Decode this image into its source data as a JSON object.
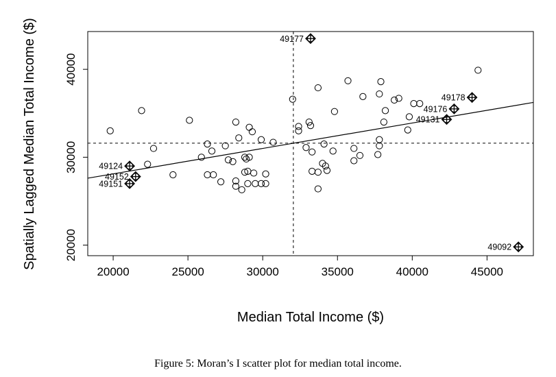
{
  "caption": "Figure 5: Moran’s I scatter plot for median total income.",
  "chart_data": {
    "type": "scatter",
    "xlabel": "Median Total Income ($)",
    "ylabel": "Spatially Lagged Median Total Income ($)",
    "xlim": [
      18300,
      48100
    ],
    "ylim": [
      18800,
      44300
    ],
    "xticks": [
      20000,
      25000,
      30000,
      35000,
      40000,
      45000
    ],
    "yticks": [
      20000,
      30000,
      40000
    ],
    "mean_x": 32050,
    "mean_y": 31600,
    "regression_line": {
      "intercept": 22320,
      "slope": 0.2893
    },
    "grid": false,
    "points": [
      [
        19800,
        33000
      ],
      [
        21900,
        35300
      ],
      [
        22300,
        29200
      ],
      [
        22700,
        31000
      ],
      [
        24000,
        28000
      ],
      [
        25100,
        34200
      ],
      [
        25900,
        30000
      ],
      [
        26300,
        31500
      ],
      [
        26600,
        30700
      ],
      [
        26300,
        28000
      ],
      [
        26700,
        28000
      ],
      [
        27200,
        27200
      ],
      [
        27500,
        31300
      ],
      [
        27700,
        29700
      ],
      [
        28000,
        29500
      ],
      [
        28200,
        34000
      ],
      [
        28200,
        27300
      ],
      [
        28200,
        26700
      ],
      [
        28400,
        32200
      ],
      [
        28600,
        26300
      ],
      [
        28800,
        30000
      ],
      [
        28800,
        28300
      ],
      [
        28900,
        29800
      ],
      [
        29000,
        28400
      ],
      [
        29000,
        27000
      ],
      [
        29100,
        30000
      ],
      [
        29100,
        33400
      ],
      [
        29300,
        32900
      ],
      [
        29400,
        28200
      ],
      [
        29500,
        27000
      ],
      [
        29900,
        32000
      ],
      [
        29900,
        27000
      ],
      [
        30200,
        28100
      ],
      [
        30200,
        27000
      ],
      [
        30700,
        31700
      ],
      [
        32000,
        36600
      ],
      [
        32400,
        33500
      ],
      [
        32400,
        33000
      ],
      [
        32900,
        31100
      ],
      [
        33100,
        34000
      ],
      [
        33200,
        33600
      ],
      [
        33300,
        30600
      ],
      [
        33300,
        28400
      ],
      [
        33700,
        37900
      ],
      [
        33700,
        28300
      ],
      [
        33700,
        26400
      ],
      [
        34000,
        29300
      ],
      [
        34100,
        31500
      ],
      [
        34200,
        29000
      ],
      [
        34300,
        28500
      ],
      [
        34700,
        30700
      ],
      [
        34800,
        35200
      ],
      [
        35700,
        38700
      ],
      [
        36100,
        31000
      ],
      [
        36100,
        29600
      ],
      [
        36500,
        30200
      ],
      [
        36700,
        36900
      ],
      [
        37700,
        30300
      ],
      [
        37800,
        32000
      ],
      [
        37800,
        31300
      ],
      [
        37800,
        37200
      ],
      [
        37900,
        38600
      ],
      [
        38100,
        34000
      ],
      [
        38200,
        35300
      ],
      [
        38800,
        36500
      ],
      [
        39100,
        36700
      ],
      [
        39800,
        34600
      ],
      [
        39700,
        33100
      ],
      [
        40100,
        36100
      ],
      [
        40500,
        36100
      ],
      [
        44400,
        39900
      ]
    ],
    "influential_points": [
      {
        "label": "49177",
        "x": 33200,
        "y": 43500
      },
      {
        "label": "49178",
        "x": 44000,
        "y": 36800
      },
      {
        "label": "49176",
        "x": 42800,
        "y": 35500
      },
      {
        "label": "49131",
        "x": 42300,
        "y": 34300
      },
      {
        "label": "49124",
        "x": 21100,
        "y": 29000
      },
      {
        "label": "49152",
        "x": 21500,
        "y": 27800
      },
      {
        "label": "49151",
        "x": 21100,
        "y": 27000
      },
      {
        "label": "49092",
        "x": 47100,
        "y": 19800
      }
    ]
  }
}
